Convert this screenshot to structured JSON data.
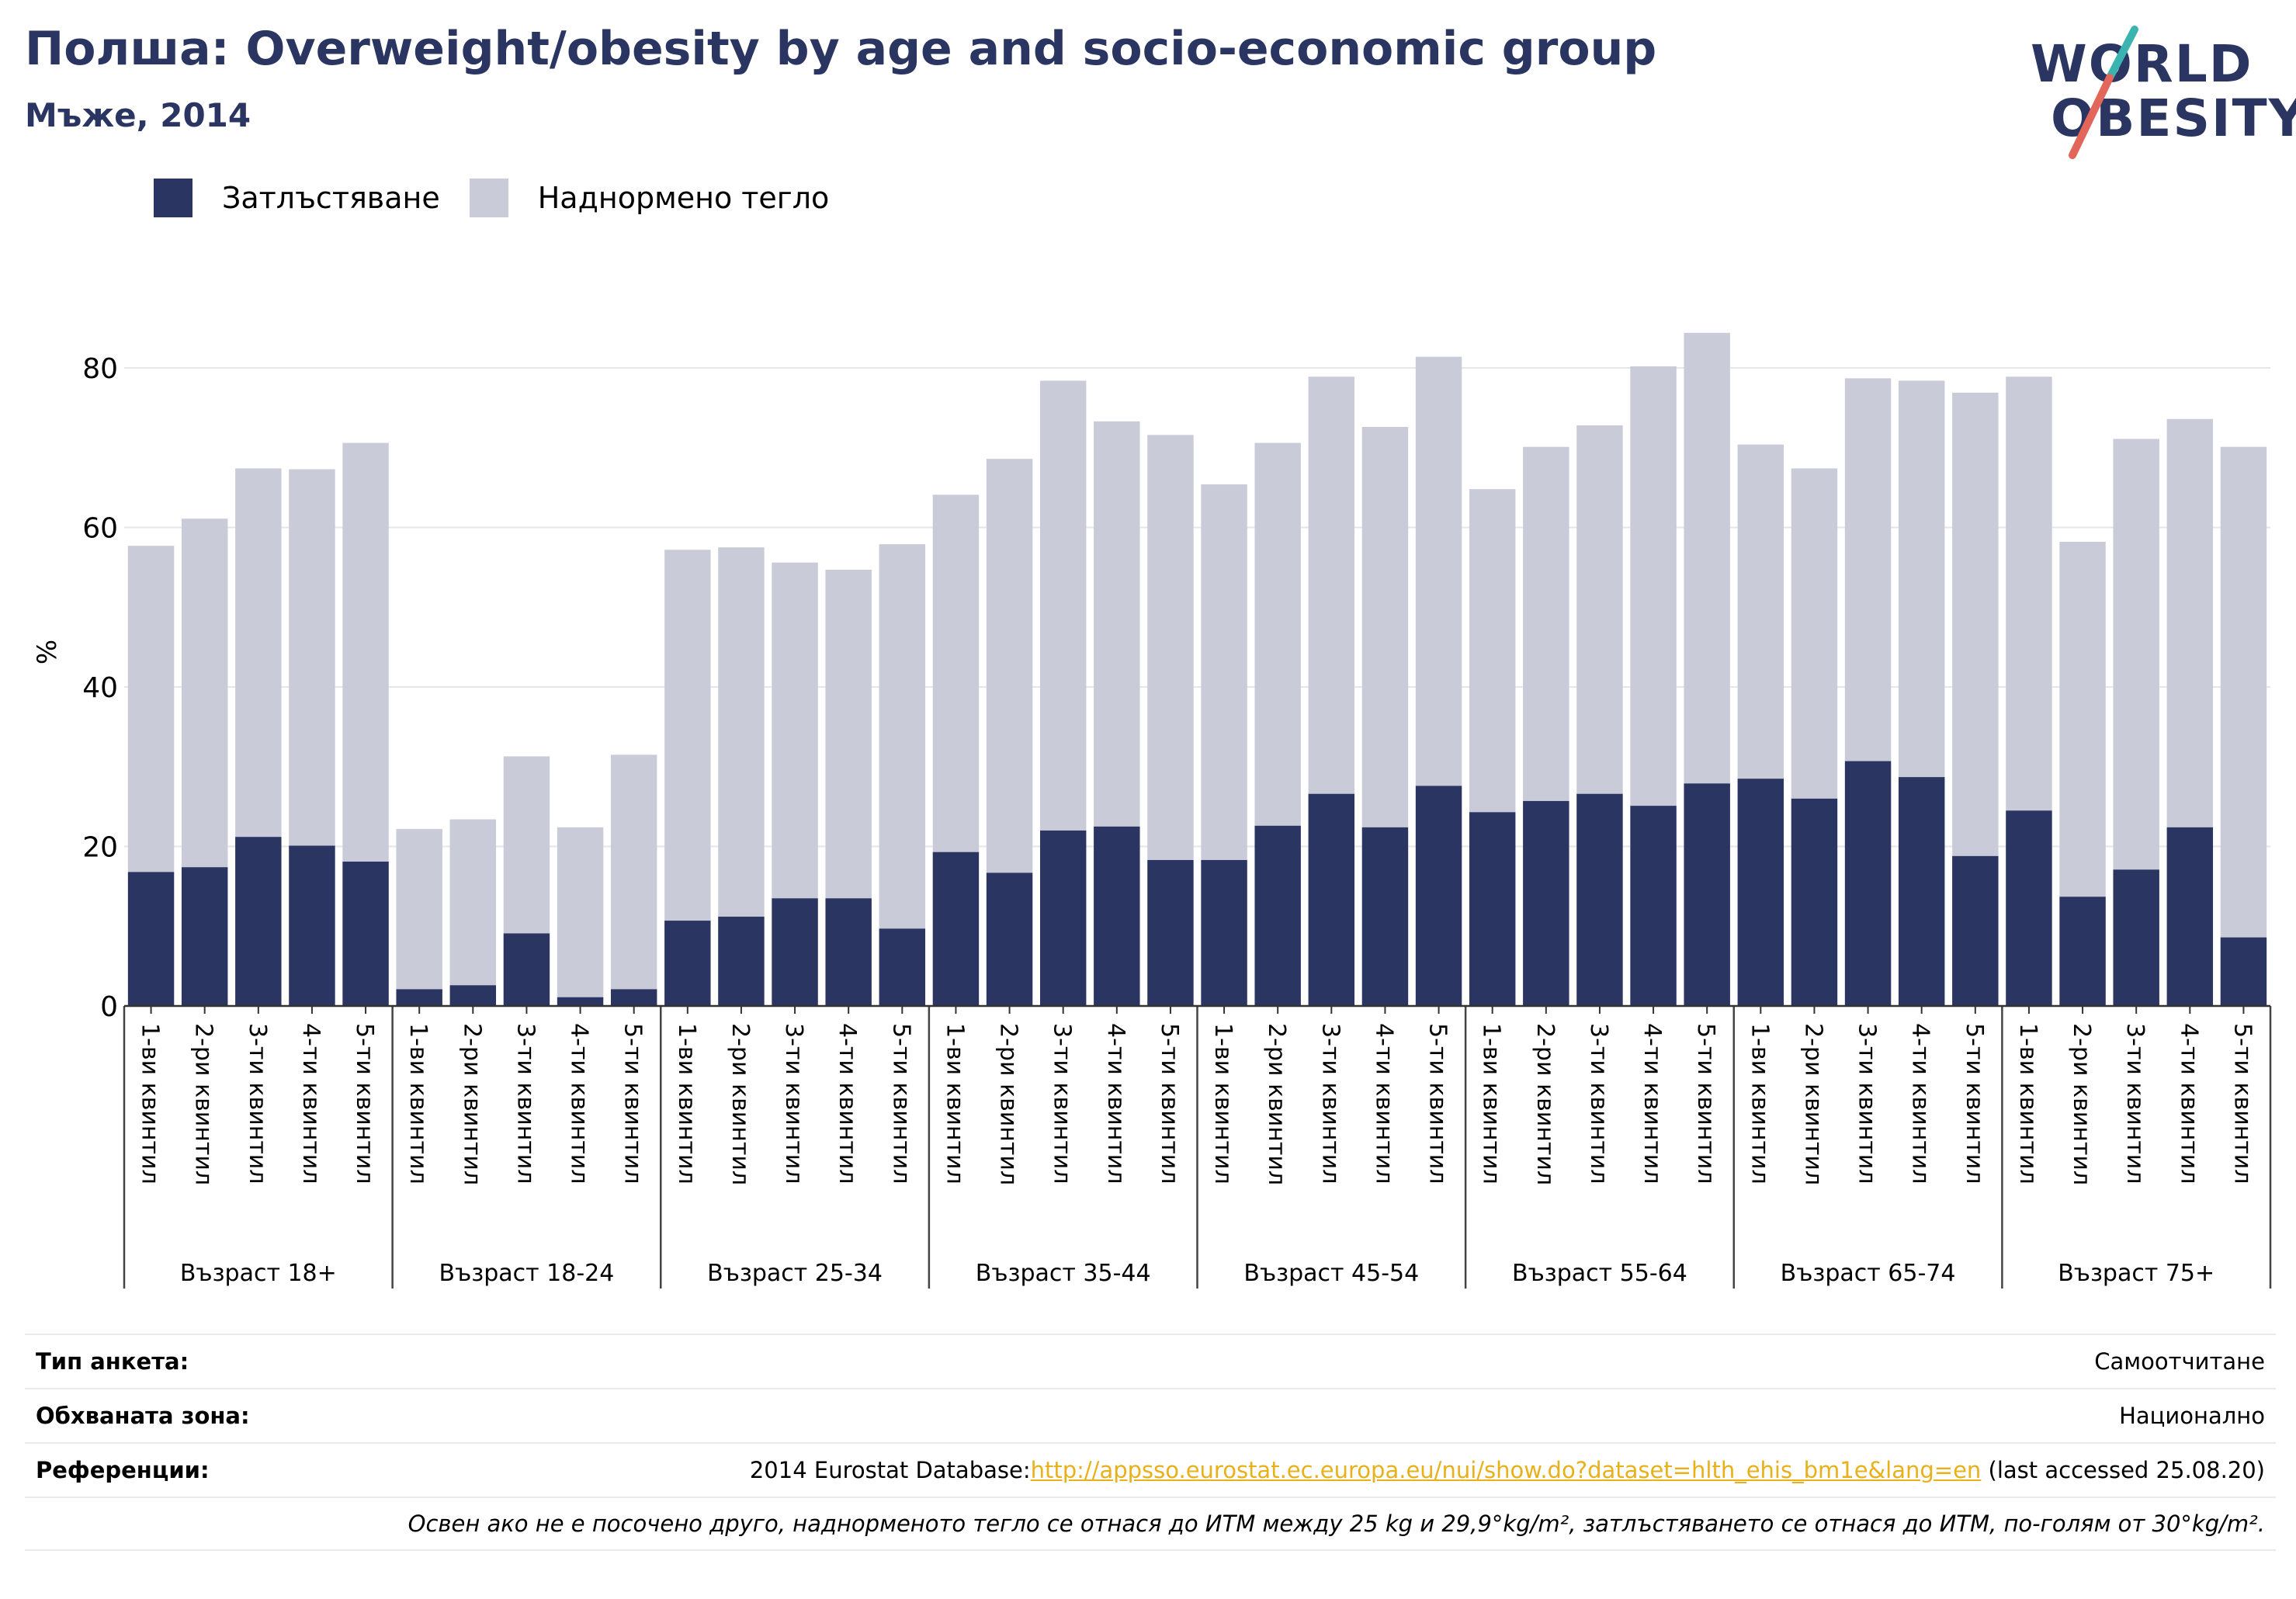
{
  "header": {
    "title": "Полша: Overweight/obesity by age and socio-economic group",
    "subtitle": "Мъже, 2014"
  },
  "logo": {
    "line1": "WORLD",
    "line2": "OBESITY",
    "colors": {
      "text": "#2a3561",
      "slash_top": "#3bb3b1",
      "slash_bottom": "#e2675a"
    }
  },
  "colors": {
    "obesity": "#2a3561",
    "overweight": "#cacbd8",
    "grid": "#e6e6ea"
  },
  "chart_data": {
    "type": "bar",
    "stacked": true,
    "title": "Полша: Overweight/obesity by age and socio-economic group",
    "subtitle": "Мъже, 2014",
    "ylabel": "%",
    "ylim": [
      0,
      90
    ],
    "yticks": [
      0,
      20,
      40,
      60,
      80
    ],
    "grid": true,
    "legend_position": "top-left",
    "legend": [
      "Затлъстяване",
      "Наднормено тегло"
    ],
    "quintiles": [
      "1-ви квинтил",
      "2-ри квинтил",
      "3-ти квинтил",
      "4-ти квинтил",
      "5-ти квинтил"
    ],
    "groups": [
      {
        "label": "Възраст 18+",
        "obesity": [
          16.8,
          17.4,
          21.2,
          20.1,
          18.1
        ],
        "total": [
          57.7,
          61.1,
          67.4,
          67.3,
          70.6
        ]
      },
      {
        "label": "Възраст 18-24",
        "obesity": [
          2.1,
          2.6,
          9.1,
          1.1,
          2.1
        ],
        "total": [
          22.2,
          23.4,
          31.3,
          22.4,
          31.5
        ]
      },
      {
        "label": "Възраст 25-34",
        "obesity": [
          10.7,
          11.2,
          13.5,
          13.5,
          9.7
        ],
        "total": [
          57.2,
          57.5,
          55.6,
          54.7,
          57.9
        ]
      },
      {
        "label": "Възраст 35-44",
        "obesity": [
          19.3,
          16.7,
          22.0,
          22.5,
          18.3
        ],
        "total": [
          64.1,
          68.6,
          78.4,
          73.3,
          71.6
        ]
      },
      {
        "label": "Възраст 45-54",
        "obesity": [
          18.3,
          22.6,
          26.6,
          22.4,
          27.6
        ],
        "total": [
          65.4,
          70.6,
          78.9,
          72.6,
          81.4
        ]
      },
      {
        "label": "Възраст 55-64",
        "obesity": [
          24.3,
          25.7,
          26.6,
          25.1,
          27.9
        ],
        "total": [
          64.8,
          70.1,
          72.8,
          80.2,
          84.4
        ]
      },
      {
        "label": "Възраст 65-74",
        "obesity": [
          28.5,
          26.0,
          30.7,
          28.7,
          18.8
        ],
        "total": [
          70.4,
          67.4,
          78.7,
          78.4,
          76.9
        ]
      },
      {
        "label": "Възраст 75+",
        "obesity": [
          24.5,
          13.7,
          17.1,
          22.4,
          8.6
        ],
        "total": [
          78.9,
          58.2,
          71.1,
          73.6,
          70.1
        ]
      }
    ]
  },
  "footer": {
    "survey_label": "Тип анкета:",
    "survey_value": "Самоотчитане",
    "area_label": "Обхваната зона:",
    "area_value": "Национално",
    "ref_label": "Референции:",
    "ref_prefix": "2014 Eurostat Database:",
    "ref_link": "http://appsso.eurostat.ec.europa.eu/nui/show.do?dataset=hlth_ehis_bm1e&lang=en",
    "ref_suffix": " (last accessed 25.08.20)",
    "note": "Освен ако не е посочено друго, наднорменото тегло се отнася до ИТМ между 25 kg и 29,9°kg/m², затлъстяването се отнася до ИТМ, по-голям от 30°kg/m²."
  }
}
